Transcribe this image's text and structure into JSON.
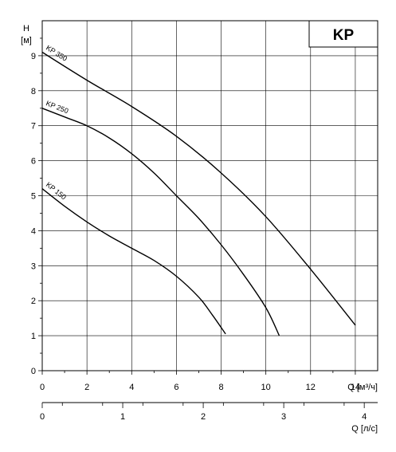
{
  "chart_data": {
    "type": "line",
    "badge": "KP",
    "y_axis": {
      "symbol": "H",
      "unit": "[м]",
      "range": [
        0,
        10
      ],
      "ticks": [
        "0",
        "1",
        "2",
        "3",
        "4",
        "5",
        "6",
        "7",
        "8",
        "9"
      ]
    },
    "x_axis": {
      "label": "Q [м³/ч]",
      "range": [
        0,
        15
      ],
      "ticks": [
        "0",
        "2",
        "4",
        "6",
        "8",
        "10",
        "12",
        "14"
      ]
    },
    "x2_axis": {
      "label": "Q [л/с]",
      "ticks": [
        "0",
        "1",
        "2",
        "3",
        "4"
      ]
    },
    "grid": true,
    "series": [
      {
        "name": "KP 350",
        "color": "#000000",
        "points": [
          [
            0,
            9.1
          ],
          [
            2,
            8.3
          ],
          [
            4,
            7.55
          ],
          [
            6,
            6.7
          ],
          [
            8,
            5.65
          ],
          [
            10,
            4.4
          ],
          [
            12,
            2.9
          ],
          [
            14,
            1.3
          ]
        ]
      },
      {
        "name": "KP 250",
        "color": "#000000",
        "points": [
          [
            0,
            7.5
          ],
          [
            1,
            7.25
          ],
          [
            2,
            7.0
          ],
          [
            3,
            6.65
          ],
          [
            4,
            6.2
          ],
          [
            5,
            5.65
          ],
          [
            6,
            5.0
          ],
          [
            7,
            4.35
          ],
          [
            8,
            3.6
          ],
          [
            9,
            2.75
          ],
          [
            10,
            1.8
          ],
          [
            10.6,
            1.0
          ]
        ]
      },
      {
        "name": "KP 150",
        "color": "#000000",
        "points": [
          [
            0,
            5.2
          ],
          [
            1,
            4.7
          ],
          [
            2,
            4.25
          ],
          [
            3,
            3.85
          ],
          [
            4,
            3.5
          ],
          [
            5,
            3.15
          ],
          [
            6,
            2.7
          ],
          [
            7,
            2.1
          ],
          [
            7.6,
            1.6
          ],
          [
            8.2,
            1.05
          ]
        ]
      }
    ]
  }
}
